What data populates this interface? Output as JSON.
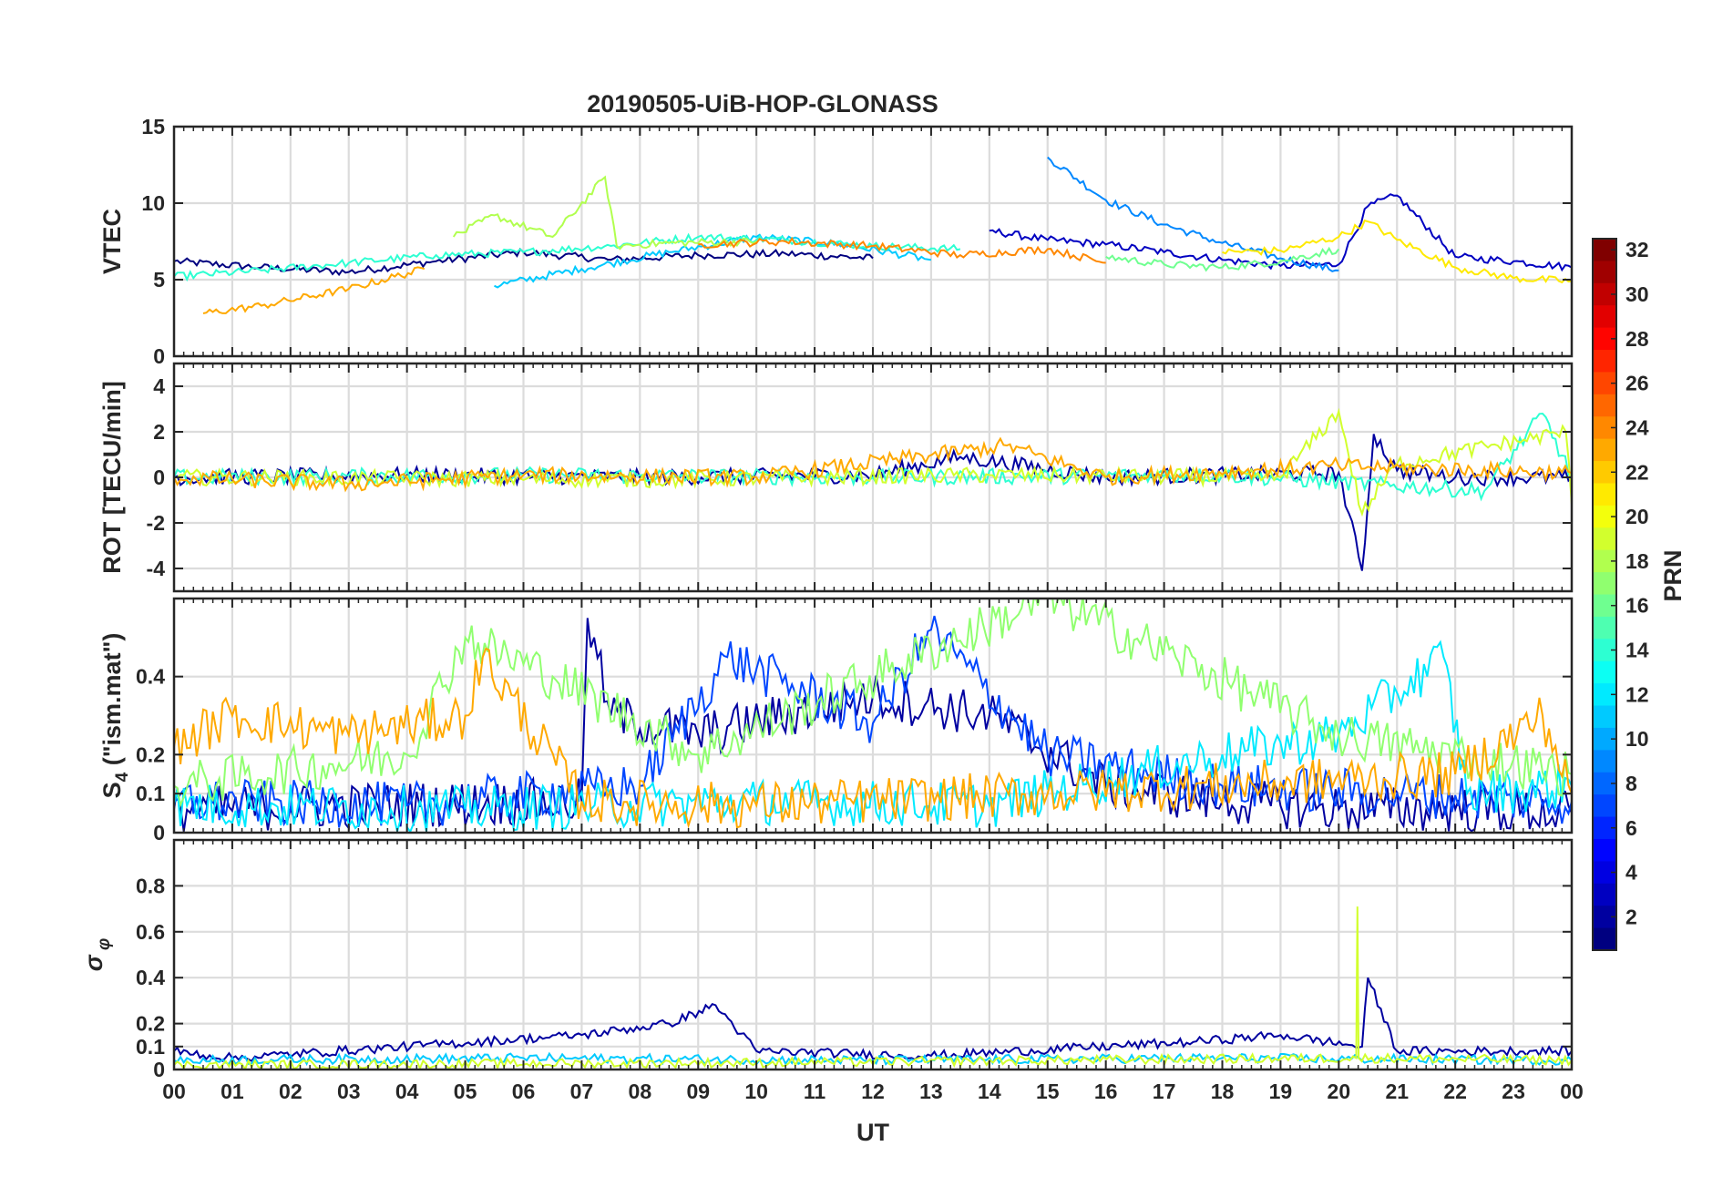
{
  "chart_data": {
    "type": "line",
    "title": "20190505-UiB-HOP-GLONASS",
    "xlabel": "UT",
    "x_range_hours": [
      0,
      24
    ],
    "x_tick_labels": [
      "00",
      "01",
      "02",
      "03",
      "04",
      "05",
      "06",
      "07",
      "08",
      "09",
      "10",
      "11",
      "12",
      "13",
      "14",
      "15",
      "16",
      "17",
      "18",
      "19",
      "20",
      "21",
      "22",
      "23",
      "00"
    ],
    "grid": true,
    "colorbar": {
      "label": "PRN",
      "colormap": "jet",
      "range": [
        1,
        32
      ],
      "placement": "right",
      "tick_labels": [
        "2",
        "4",
        "6",
        "8",
        "10",
        "12",
        "14",
        "16",
        "18",
        "20",
        "22",
        "24",
        "26",
        "28",
        "30",
        "32"
      ]
    },
    "panels": [
      {
        "ylabel": "VTEC",
        "ylim": [
          0,
          15
        ],
        "y_tick_labels": [
          "0",
          "5",
          "10",
          "15"
        ],
        "series": [
          {
            "prn": 1,
            "x": [
              0,
              1.5,
              3,
              4.5,
              6,
              7.5,
              9,
              10.5,
              12
            ],
            "y": [
              6.2,
              5.8,
              5.5,
              6.2,
              6.8,
              6.3,
              6.6,
              6.7,
              6.4
            ]
          },
          {
            "prn": 3,
            "x": [
              14,
              15,
              16,
              17,
              18,
              19,
              20,
              20.5,
              21,
              22,
              23,
              24
            ],
            "y": [
              8.2,
              7.6,
              7.3,
              6.8,
              6.3,
              5.9,
              6.0,
              9.8,
              10.5,
              6.5,
              6.2,
              5.8
            ]
          },
          {
            "prn": 9,
            "x": [
              15,
              16,
              17,
              18,
              19,
              20
            ],
            "y": [
              13,
              10.2,
              8.6,
              7.4,
              6.4,
              5.6
            ]
          },
          {
            "prn": 11,
            "x": [
              5.5,
              7,
              8.5,
              10,
              11.5,
              13
            ],
            "y": [
              4.6,
              5.7,
              6.8,
              7.8,
              7.3,
              6.3
            ]
          },
          {
            "prn": 14,
            "x": [
              0,
              1.5,
              3,
              4.5,
              6,
              7.5,
              9,
              10.5,
              12,
              13.5
            ],
            "y": [
              5.2,
              5.6,
              6.1,
              6.6,
              6.8,
              7.2,
              7.8,
              7.6,
              7.2,
              7.0
            ]
          },
          {
            "prn": 16,
            "x": [
              16,
              17,
              18,
              19,
              20
            ],
            "y": [
              6.5,
              6.0,
              5.8,
              6.2,
              7.0
            ]
          },
          {
            "prn": 18,
            "x": [
              4.8,
              5.5,
              6.5,
              7.4,
              7.6,
              8.5,
              10
            ],
            "y": [
              7.8,
              9.2,
              7.8,
              11.7,
              7.2,
              7.4,
              7.5
            ]
          },
          {
            "prn": 21,
            "x": [
              18,
              19,
              20,
              20.5,
              21,
              22,
              23,
              24
            ],
            "y": [
              6.8,
              6.9,
              7.8,
              8.8,
              7.6,
              5.8,
              5.1,
              4.9
            ]
          },
          {
            "prn": 23,
            "x": [
              0.5,
              1.5,
              3,
              4.3
            ],
            "y": [
              2.8,
              3.3,
              4.4,
              5.7
            ]
          },
          {
            "prn": 24,
            "x": [
              9,
              10.5,
              12,
              13.5,
              15,
              16
            ],
            "y": [
              7.3,
              7.5,
              7.2,
              6.6,
              7.0,
              6.1
            ]
          }
        ]
      },
      {
        "ylabel": "ROT [TECU/min]",
        "ylim": [
          -5,
          5
        ],
        "y_tick_labels": [
          "-4",
          "-2",
          "0",
          "2",
          "4"
        ],
        "series": [
          {
            "prn": 2,
            "x": [
              0,
              4,
              8,
              12,
              13.5,
              16,
              20,
              20.4,
              20.6,
              21,
              22,
              24
            ],
            "y": [
              0,
              0.1,
              0,
              0.1,
              0.9,
              0,
              0.2,
              -4.1,
              1.9,
              0.3,
              0,
              0
            ]
          },
          {
            "prn": 14,
            "x": [
              0,
              6,
              12,
              18,
              22.5,
              23.5,
              24
            ],
            "y": [
              0,
              0.1,
              0,
              0.1,
              -0.6,
              2.8,
              0
            ]
          },
          {
            "prn": 19,
            "x": [
              0,
              8,
              14,
              19,
              20,
              20.4,
              21,
              23.9,
              24
            ],
            "y": [
              0,
              -0.1,
              0.1,
              0,
              2.9,
              -1.6,
              0.6,
              2.0,
              -1.2
            ]
          },
          {
            "prn": 23,
            "x": [
              0,
              3,
              6,
              10,
              14.3,
              16,
              20,
              24
            ],
            "y": [
              0,
              -0.3,
              0.1,
              0,
              1.4,
              0,
              0.5,
              0.2
            ]
          }
        ]
      },
      {
        "ylabel": "S4 (\"ism.mat\")",
        "ylabel_base": "S",
        "ylabel_sub": "4",
        "ylabel_rest": " (\"ism.mat\")",
        "ylim": [
          0,
          0.6
        ],
        "y_tick_labels": [
          "0",
          "0.1",
          "0.2",
          "0.4"
        ],
        "series": [
          {
            "prn": 2,
            "x": [
              0,
              7,
              7.1,
              7.5,
              9,
              12,
              14,
              16,
              18,
              20,
              22,
              24
            ],
            "y": [
              0.06,
              0.08,
              0.55,
              0.3,
              0.25,
              0.35,
              0.3,
              0.12,
              0.08,
              0.06,
              0.06,
              0.05
            ]
          },
          {
            "prn": 7,
            "x": [
              0,
              4,
              8,
              9.5,
              12,
              13,
              15,
              18,
              21,
              24
            ],
            "y": [
              0.08,
              0.07,
              0.12,
              0.45,
              0.28,
              0.52,
              0.2,
              0.12,
              0.1,
              0.08
            ]
          },
          {
            "prn": 12,
            "x": [
              0,
              5,
              10,
              14,
              18,
              20,
              21.8,
              22.2,
              24
            ],
            "y": [
              0.07,
              0.06,
              0.08,
              0.07,
              0.2,
              0.25,
              0.45,
              0.1,
              0.12
            ]
          },
          {
            "prn": 17,
            "x": [
              0,
              4,
              5,
              6.5,
              9,
              15,
              17.2,
              20,
              24
            ],
            "y": [
              0.12,
              0.2,
              0.5,
              0.4,
              0.2,
              0.6,
              0.45,
              0.25,
              0.15
            ]
          },
          {
            "prn": 23,
            "x": [
              0,
              1,
              3,
              5,
              5.3,
              7,
              10,
              15,
              22,
              23.5,
              24
            ],
            "y": [
              0.22,
              0.3,
              0.25,
              0.3,
              0.45,
              0.08,
              0.07,
              0.1,
              0.15,
              0.3,
              0.1
            ]
          }
        ]
      },
      {
        "ylabel": "σφ",
        "ylabel_symbol": "σ",
        "ylabel_sub": "φ",
        "ylim": [
          0,
          1
        ],
        "y_tick_labels": [
          "0",
          "0.1",
          "0.2",
          "0.4",
          "0.6",
          "0.8"
        ],
        "series": [
          {
            "prn": 2,
            "x": [
              0,
              1,
              7,
              8.5,
              9.3,
              10,
              13,
              17.5,
              19,
              20.4,
              20.5,
              21,
              24
            ],
            "y": [
              0.08,
              0.05,
              0.15,
              0.2,
              0.28,
              0.08,
              0.06,
              0.12,
              0.15,
              0.1,
              0.4,
              0.08,
              0.08
            ]
          },
          {
            "prn": 11,
            "x": [
              0,
              6,
              12,
              18,
              24
            ],
            "y": [
              0.04,
              0.05,
              0.04,
              0.05,
              0.04
            ]
          },
          {
            "prn": 19,
            "x": [
              0,
              10,
              20.3,
              20.32,
              20.34,
              24
            ],
            "y": [
              0.02,
              0.03,
              0.05,
              0.71,
              0.05,
              0.04
            ]
          }
        ]
      }
    ]
  }
}
